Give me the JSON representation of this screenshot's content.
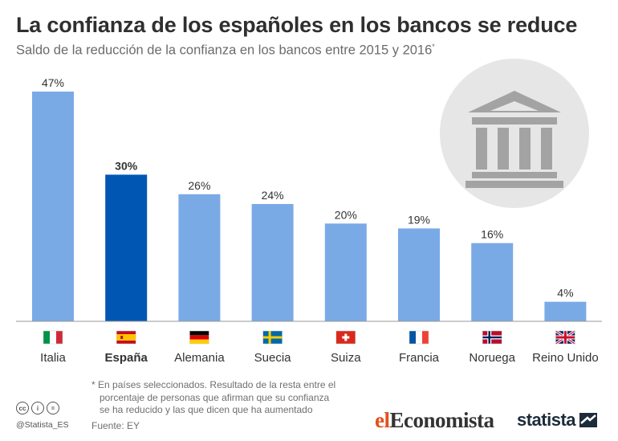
{
  "header": {
    "title": "La confianza de los españoles en los bancos se reduce",
    "subtitle": "Saldo de la reducción de la confianza en los bancos entre 2015 y 2016",
    "subtitle_mark": "*"
  },
  "chart_data": {
    "type": "bar",
    "categories": [
      "Italia",
      "España",
      "Alemania",
      "Suecia",
      "Suiza",
      "Francia",
      "Noruega",
      "Reino Unido"
    ],
    "values": [
      47,
      30,
      26,
      24,
      20,
      19,
      16,
      4
    ],
    "value_labels": [
      "47%",
      "30%",
      "26%",
      "24%",
      "20%",
      "19%",
      "16%",
      "4%"
    ],
    "unit": "%",
    "title": "La confianza de los españoles en los bancos se reduce",
    "subtitle": "Saldo de la reducción de la confianza en los bancos entre 2015 y 2016*",
    "highlight_category": "España",
    "ylim": [
      0,
      47
    ],
    "grid": false,
    "legend": "none",
    "colors": {
      "bar": "#7aaae6",
      "highlight": "#0056b3",
      "baseline": "#999999",
      "icon_circle": "#e6e6e6",
      "icon": "#a3a3a3"
    },
    "flags": [
      "flag-italy-icon",
      "flag-spain-icon",
      "flag-germany-icon",
      "flag-sweden-icon",
      "flag-switzerland-icon",
      "flag-france-icon",
      "flag-norway-icon",
      "flag-uk-icon"
    ]
  },
  "decoration": {
    "icon": "bank-building-icon"
  },
  "footer": {
    "footnote_lines": [
      "* En países seleccionados. Resultado de la resta entre el",
      "porcentaje de personas que afirman que su confianza",
      "se ha reducido y las que dicen que ha aumentado"
    ],
    "source": "Fuente: EY",
    "handle": "@Statista_ES",
    "license_icons": [
      "cc-icon",
      "attribution-icon",
      "no-derivatives-icon"
    ],
    "license_symbols": [
      "cc",
      "i",
      "="
    ],
    "logo_left_part1": "el",
    "logo_left_part2": "Economista",
    "logo_right": "statista",
    "logo_right_mark": "statista-mark-icon"
  }
}
